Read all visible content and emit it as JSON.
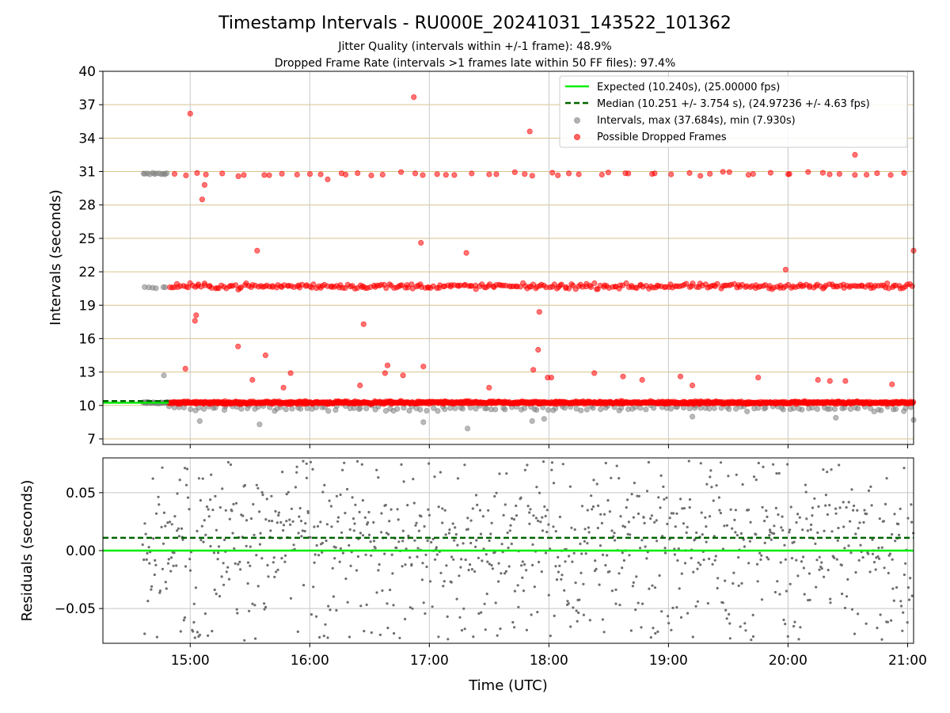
{
  "chart_data": {
    "type": "scatter",
    "title": "Timestamp Intervals - RU000E_20241031_143522_101362",
    "subtitle_lines": [
      "Jitter Quality (intervals within +/-1 frame): 48.9%",
      "Dropped Frame Rate (intervals >1 frames late within 50 FF files): 97.4%"
    ],
    "xlabel": "Time (UTC)",
    "x_ticks": [
      "15:00",
      "16:00",
      "17:00",
      "18:00",
      "19:00",
      "20:00",
      "21:00"
    ],
    "x_tick_hours": [
      15,
      16,
      17,
      18,
      19,
      20,
      21
    ],
    "xlim_hours": [
      14.27,
      21.05
    ],
    "top_panel": {
      "ylabel": "Intervals (seconds)",
      "ylim": [
        6.5,
        40
      ],
      "y_ticks": [
        7,
        10,
        13,
        16,
        19,
        22,
        25,
        28,
        31,
        34,
        37,
        40
      ],
      "grid": "horizontal lines at each y tick, vertical lines at each x tick",
      "expected_interval_s": 10.24,
      "median_interval_s": 10.251,
      "legend_position": "top-right",
      "legend": [
        "Expected (10.240s), (25.00000 fps)",
        "Median (10.251 +/- 3.754 s), (24.97236 +/- 4.63 fps)",
        "Intervals, max (37.684s), min (7.930s)",
        "Possible Dropped Frames"
      ],
      "clusters": [
        {
          "series": "intervals",
          "x_range": [
            14.6,
            14.82
          ],
          "y_center": 10.24,
          "y_spread": 0.12,
          "count": 25
        },
        {
          "series": "intervals",
          "x_range": [
            14.6,
            14.82
          ],
          "y_center": 30.8,
          "y_spread": 0.1,
          "count": 12
        },
        {
          "series": "intervals",
          "x_range": [
            14.6,
            14.82
          ],
          "y_center": 20.6,
          "y_spread": 0.1,
          "count": 6
        },
        {
          "series": "intervals",
          "x_range": [
            14.82,
            21.05
          ],
          "y_center": 9.75,
          "y_spread": 0.35,
          "count": 160
        },
        {
          "series": "dropped",
          "x_range": [
            14.82,
            21.05
          ],
          "y_center": 10.25,
          "y_spread": 0.18,
          "count": 1100
        },
        {
          "series": "dropped",
          "x_range": [
            14.82,
            21.05
          ],
          "y_center": 20.7,
          "y_spread": 0.35,
          "count": 330
        },
        {
          "series": "dropped",
          "x_range": [
            14.82,
            21.05
          ],
          "y_center": 30.8,
          "y_spread": 0.25,
          "count": 60
        }
      ],
      "outliers": {
        "intervals": [
          [
            14.78,
            12.7
          ],
          [
            15.08,
            8.6
          ],
          [
            15.58,
            8.3
          ],
          [
            16.95,
            8.5
          ],
          [
            17.32,
            7.93
          ],
          [
            17.86,
            8.6
          ],
          [
            17.96,
            8.8
          ],
          [
            19.2,
            9.0
          ],
          [
            20.4,
            8.9
          ],
          [
            21.05,
            8.7
          ]
        ],
        "dropped": [
          [
            14.96,
            13.3
          ],
          [
            15.0,
            36.2
          ],
          [
            15.04,
            17.6
          ],
          [
            15.05,
            18.1
          ],
          [
            15.1,
            28.5
          ],
          [
            15.12,
            29.8
          ],
          [
            15.4,
            15.3
          ],
          [
            15.52,
            12.3
          ],
          [
            15.56,
            23.9
          ],
          [
            15.63,
            14.5
          ],
          [
            15.78,
            11.6
          ],
          [
            15.84,
            12.9
          ],
          [
            16.15,
            30.3
          ],
          [
            16.42,
            11.8
          ],
          [
            16.45,
            17.3
          ],
          [
            16.63,
            12.9
          ],
          [
            16.65,
            13.6
          ],
          [
            16.78,
            12.7
          ],
          [
            16.87,
            37.68
          ],
          [
            16.93,
            24.6
          ],
          [
            16.95,
            13.5
          ],
          [
            17.31,
            23.7
          ],
          [
            17.5,
            11.6
          ],
          [
            17.84,
            34.6
          ],
          [
            17.87,
            13.2
          ],
          [
            17.91,
            15.0
          ],
          [
            17.92,
            18.4
          ],
          [
            17.99,
            12.5
          ],
          [
            18.02,
            12.5
          ],
          [
            18.38,
            12.9
          ],
          [
            18.62,
            12.6
          ],
          [
            18.78,
            12.3
          ],
          [
            19.1,
            12.6
          ],
          [
            19.2,
            11.8
          ],
          [
            19.75,
            12.5
          ],
          [
            19.98,
            22.2
          ],
          [
            20.25,
            12.3
          ],
          [
            20.35,
            12.2
          ],
          [
            20.48,
            12.2
          ],
          [
            20.56,
            32.5
          ],
          [
            20.87,
            11.9
          ],
          [
            21.05,
            23.9
          ]
        ]
      }
    },
    "bottom_panel": {
      "ylabel": "Residuals (seconds)",
      "ylim": [
        -0.08,
        0.08
      ],
      "y_ticks": [
        0.05,
        0.0,
        -0.05
      ],
      "y_tick_labels": [
        "0.05",
        "0.00",
        "−0.05"
      ],
      "expected_line": 0.0,
      "median_line": 0.011,
      "series": {
        "name": "residuals",
        "x_range": [
          14.6,
          21.05
        ],
        "y_distribution": "roughly uniform between -0.08 and 0.08",
        "count": 1000
      }
    },
    "colors": {
      "expected": "#00ee00",
      "median": "#006400",
      "intervals": "#808080",
      "dropped": "#ff0000",
      "grid_h": "#d8c38a",
      "grid_v": "#c8c8c8",
      "residuals": "#6e6e6e"
    }
  }
}
